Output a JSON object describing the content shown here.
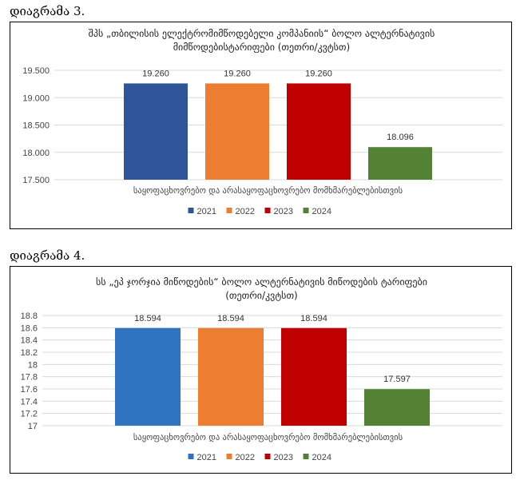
{
  "captions": [
    "დიაგრამა 3.",
    "დიაგრამა 4."
  ],
  "colors": {
    "2021": "#2E5597",
    "2022": "#ED7D31",
    "2023": "#C00000",
    "2024": "#548235",
    "2021_b": "#2E74C0"
  },
  "chart_data": [
    {
      "type": "bar",
      "title_lines": [
        "შპს „თბილისის ელექტრომიმწოდებელი კომპანიის“ ბოლო ალტერნატივის",
        "მიმწოდებისტარიფები (თეთრი/კვტსთ)"
      ],
      "categories": [
        "საყოფაცხოვრებო და არასაყოფაცხოვრებო მომხმარებლებისთვის"
      ],
      "series": [
        {
          "name": "2021",
          "values": [
            19.26
          ],
          "label": "19.260"
        },
        {
          "name": "2022",
          "values": [
            19.26
          ],
          "label": "19.260"
        },
        {
          "name": "2023",
          "values": [
            19.26
          ],
          "label": "19.260"
        },
        {
          "name": "2024",
          "values": [
            18.096
          ],
          "label": "18.096"
        }
      ],
      "ylim": [
        17.5,
        19.5
      ],
      "yticks": [
        "19.500",
        "19.000",
        "18.500",
        "18.000",
        "17.500"
      ],
      "ytick_values": [
        19.5,
        19.0,
        18.5,
        18.0,
        17.5
      ],
      "grid": true,
      "legend": "bottom"
    },
    {
      "type": "bar",
      "title_lines": [
        "სს „ეპ ჯორჯია მიწოდების“ ბოლო ალტერნატივის მიწოდების ტარიფები",
        "(თეთრი/კვტსთ)"
      ],
      "categories": [
        "საყოფაცხოვრებო და არასაყოფაცხოვრებო მომხმარებლებისთვის"
      ],
      "series": [
        {
          "name": "2021",
          "values": [
            18.594
          ],
          "label": "18.594"
        },
        {
          "name": "2022",
          "values": [
            18.594
          ],
          "label": "18.594"
        },
        {
          "name": "2023",
          "values": [
            18.594
          ],
          "label": "18.594"
        },
        {
          "name": "2024",
          "values": [
            17.597
          ],
          "label": "17.597"
        }
      ],
      "ylim": [
        17,
        18.8
      ],
      "yticks": [
        "18.8",
        "18.6",
        "18.4",
        "18.2",
        "18",
        "17.8",
        "17.6",
        "17.4",
        "17.2",
        "17"
      ],
      "ytick_values": [
        18.8,
        18.6,
        18.4,
        18.2,
        18.0,
        17.8,
        17.6,
        17.4,
        17.2,
        17.0
      ],
      "grid": true,
      "legend": "bottom"
    }
  ]
}
